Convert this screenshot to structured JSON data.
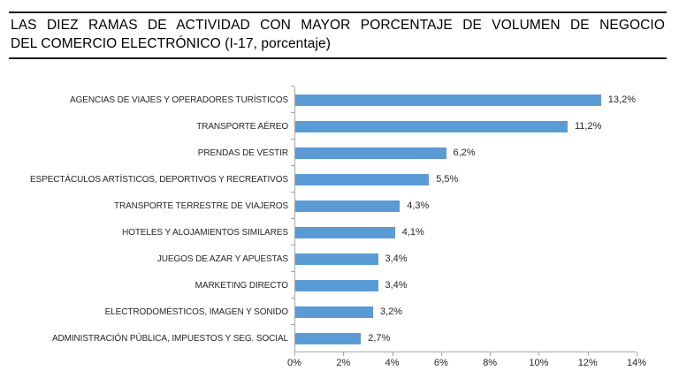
{
  "title": {
    "lines": [
      "LAS DIEZ RAMAS DE ACTIVIDAD CON MAYOR PORCENTAJE DE VOLUMEN DE NEGOCIO",
      "DEL COMERCIO ELECTRÓNICO (I-17, porcentaje)"
    ]
  },
  "chart_data": {
    "type": "bar",
    "orientation": "horizontal",
    "title": "LAS DIEZ RAMAS DE ACTIVIDAD CON MAYOR PORCENTAJE DE VOLUMEN DE NEGOCIO DEL COMERCIO ELECTRÓNICO (I-17, porcentaje)",
    "categories": [
      "AGENCIAS DE VIAJES Y OPERADORES TURÍSTICOS",
      "TRANSPORTE AÉREO",
      "PRENDAS DE VESTIR",
      "ESPECTÁCULOS ARTÍSTICOS, DEPORTIVOS Y RECREATIVOS",
      "TRANSPORTE TERRESTRE DE VIAJEROS",
      "HOTELES Y ALOJAMIENTOS SIMILARES",
      "JUEGOS DE AZAR Y APUESTAS",
      "MARKETING DIRECTO",
      "ELECTRODOMÉSTICOS, IMAGEN Y SONIDO",
      "ADMINISTRACIÓN PÚBLICA, IMPUESTOS Y SEG. SOCIAL"
    ],
    "values": [
      13.2,
      11.2,
      6.2,
      5.5,
      4.3,
      4.1,
      3.4,
      3.4,
      3.2,
      2.7
    ],
    "value_labels": [
      "13,2%",
      "11,2%",
      "6,2%",
      "5,5%",
      "4,3%",
      "4,1%",
      "3,4%",
      "3,4%",
      "3,2%",
      "2,7%"
    ],
    "x_ticks": [
      "0%",
      "2%",
      "4%",
      "6%",
      "8%",
      "10%",
      "12%",
      "14%"
    ],
    "xlim": [
      0,
      14
    ],
    "xlabel": "",
    "ylabel": "",
    "grid": false,
    "legend": false,
    "bar_color": "#5B9BD5",
    "axis_color": "#A6A6A6"
  }
}
